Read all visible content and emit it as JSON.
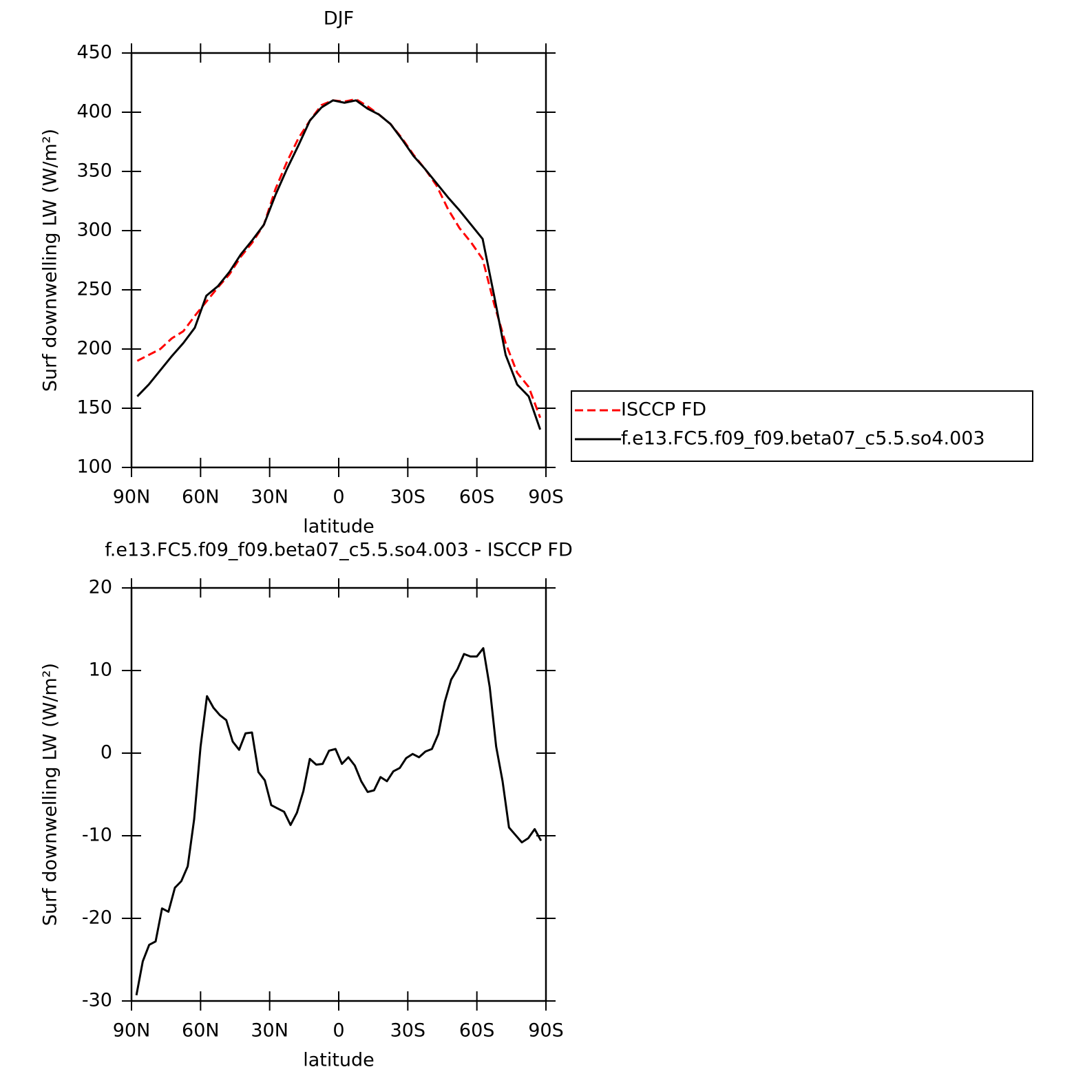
{
  "chart_data": [
    {
      "type": "line",
      "title": "DJF",
      "xlabel": "latitude",
      "ylabel": "Surf downwelling LW (W/m²)",
      "x": [
        87.5,
        82.5,
        77.5,
        72.5,
        67.5,
        62.5,
        57.5,
        52.5,
        47.5,
        42.5,
        37.5,
        32.5,
        27.5,
        22.5,
        17.5,
        12.5,
        7.5,
        2.5,
        -2.5,
        -7.5,
        -12.5,
        -17.5,
        -22.5,
        -27.5,
        -32.5,
        -37.5,
        -42.5,
        -47.5,
        -52.5,
        -57.5,
        -62.5,
        -67.5,
        -72.5,
        -77.5,
        -82.5,
        -87.5
      ],
      "series": [
        {
          "name": "ISCCP FD",
          "color": "#ff0000",
          "linestyle": "dashed",
          "values": [
            190,
            195,
            200,
            209,
            215,
            228,
            240,
            252,
            263,
            278,
            290,
            305,
            335,
            358,
            378,
            393,
            406,
            410,
            409,
            411,
            405,
            398,
            390,
            378,
            364,
            352,
            338,
            318,
            302,
            290,
            276,
            238,
            205,
            180,
            168,
            142
          ]
        },
        {
          "name": "f.e13.FC5.f09_f09.beta07_c5.5.so4.003",
          "color": "#000000",
          "linestyle": "solid",
          "values": [
            160,
            170,
            182,
            194,
            205,
            218,
            245,
            253,
            265,
            280,
            292,
            305,
            330,
            352,
            372,
            393,
            404,
            410,
            408,
            410,
            403,
            398,
            390,
            377,
            363,
            352,
            340,
            328,
            317,
            305,
            293,
            245,
            195,
            170,
            160,
            132
          ]
        }
      ],
      "xlim": [
        90,
        -90
      ],
      "xticks": [
        {
          "value": 90,
          "label": "90N"
        },
        {
          "value": 60,
          "label": "60N"
        },
        {
          "value": 30,
          "label": "30N"
        },
        0,
        {
          "value": -30,
          "label": "30S"
        },
        {
          "value": -60,
          "label": "60S"
        },
        {
          "value": -90,
          "label": "90S"
        }
      ],
      "ylim": [
        100,
        450
      ],
      "yticks": [
        100,
        150,
        200,
        250,
        300,
        350,
        400,
        450
      ],
      "legend": "outside-right"
    },
    {
      "type": "line",
      "title": "f.e13.FC5.f09_f09.beta07_c5.5.so4.003 - ISCCP FD",
      "xlabel": "latitude",
      "ylabel": "Surf downwelling LW (W/m²)",
      "x": [
        87.86,
        85.1,
        82.31,
        79.53,
        76.74,
        73.95,
        71.16,
        68.37,
        65.58,
        62.79,
        60,
        57.21,
        54.42,
        51.63,
        48.84,
        46.05,
        43.26,
        40.47,
        37.67,
        34.88,
        32.09,
        29.3,
        26.51,
        23.72,
        20.93,
        18.14,
        15.35,
        12.56,
        9.77,
        6.98,
        4.19,
        1.4,
        -1.4,
        -4.19,
        -6.98,
        -9.77,
        -12.56,
        -15.35,
        -18.14,
        -20.93,
        -23.72,
        -26.51,
        -29.3,
        -32.09,
        -34.88,
        -37.67,
        -40.47,
        -43.26,
        -46.05,
        -48.84,
        -51.63,
        -54.42,
        -57.21,
        -60,
        -62.79,
        -65.58,
        -68.37,
        -71.16,
        -73.95,
        -76.74,
        -79.53,
        -82.31,
        -85.1,
        -87.86
      ],
      "series": [
        {
          "color": "#000000",
          "linestyle": "solid",
          "values": [
            -29.3,
            -25.2,
            -23.2,
            -22.8,
            -18.8,
            -19.2,
            -16.3,
            -15.5,
            -13.7,
            -8,
            0.8,
            6.9,
            5.5,
            4.6,
            4,
            1.4,
            0.4,
            2.4,
            2.5,
            -2.3,
            -3.3,
            -6.3,
            -6.7,
            -7.1,
            -8.7,
            -7.2,
            -4.6,
            -0.7,
            -1.4,
            -1.3,
            0.3,
            0.5,
            -1.3,
            -0.5,
            -1.5,
            -3.4,
            -4.7,
            -4.5,
            -2.9,
            -3.4,
            -2.2,
            -1.8,
            -0.6,
            -0.1,
            -0.5,
            0.2,
            0.5,
            2.3,
            6.2,
            8.9,
            10.2,
            12,
            11.7,
            11.7,
            12.7,
            8,
            0.8,
            -3.4,
            -9,
            -9.9,
            -10.8,
            -10.3,
            -9.2,
            -10.6
          ]
        }
      ],
      "xlim": [
        90,
        -90
      ],
      "xticks": [
        {
          "value": 90,
          "label": "90N"
        },
        {
          "value": 60,
          "label": "60N"
        },
        {
          "value": 30,
          "label": "30N"
        },
        0,
        {
          "value": -30,
          "label": "30S"
        },
        {
          "value": -60,
          "label": "60S"
        },
        {
          "value": -90,
          "label": "90S"
        }
      ],
      "ylim": [
        -30,
        20
      ],
      "yticks": [
        -30,
        -20,
        -10,
        0,
        10,
        20
      ]
    }
  ]
}
